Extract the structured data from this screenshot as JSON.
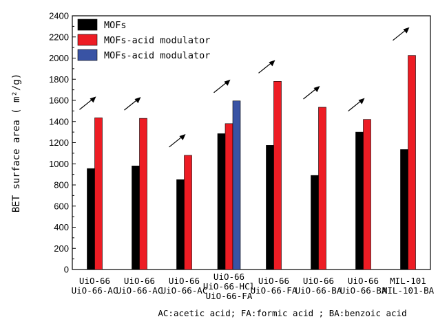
{
  "chart_data": {
    "type": "bar",
    "ylabel": "BET surface area ( m²/g)",
    "ylim": [
      0,
      2400
    ],
    "yticks": [
      0,
      200,
      400,
      600,
      800,
      1000,
      1200,
      1400,
      1600,
      1800,
      2000,
      2200,
      2400
    ],
    "legend_position": "top-left",
    "footnote": "AC:acetic acid;  FA:formic acid ;  BA:benzoic acid",
    "categories": [
      [
        "UiO-66",
        "UiO-66-AC"
      ],
      [
        "UiO-66",
        "UiO-66-AC"
      ],
      [
        "UiO-66",
        "UiO-66-AC"
      ],
      [
        "UiO-66",
        "UiO-66-HCl",
        "UiO-66-FA"
      ],
      [
        "UiO-66",
        "UiO-66-FA"
      ],
      [
        "UiO-66",
        "UiO-66-BA"
      ],
      [
        "UiO-66",
        "UiO-66-BA"
      ],
      [
        "MIL-101",
        "MIL-101-BA"
      ]
    ],
    "series": [
      {
        "name": "MOFs",
        "color": "#000000",
        "values": [
          955,
          980,
          850,
          1285,
          1175,
          890,
          1300,
          1135
        ]
      },
      {
        "name": "MOFs-acid modulator",
        "color": "#ed1c24",
        "values": [
          1435,
          1430,
          1080,
          1380,
          1780,
          1535,
          1420,
          2025
        ]
      },
      {
        "name": "MOFs-acid modulator",
        "color": "#3953a4",
        "values": [
          null,
          null,
          null,
          1595,
          null,
          null,
          null,
          null
        ]
      }
    ]
  }
}
